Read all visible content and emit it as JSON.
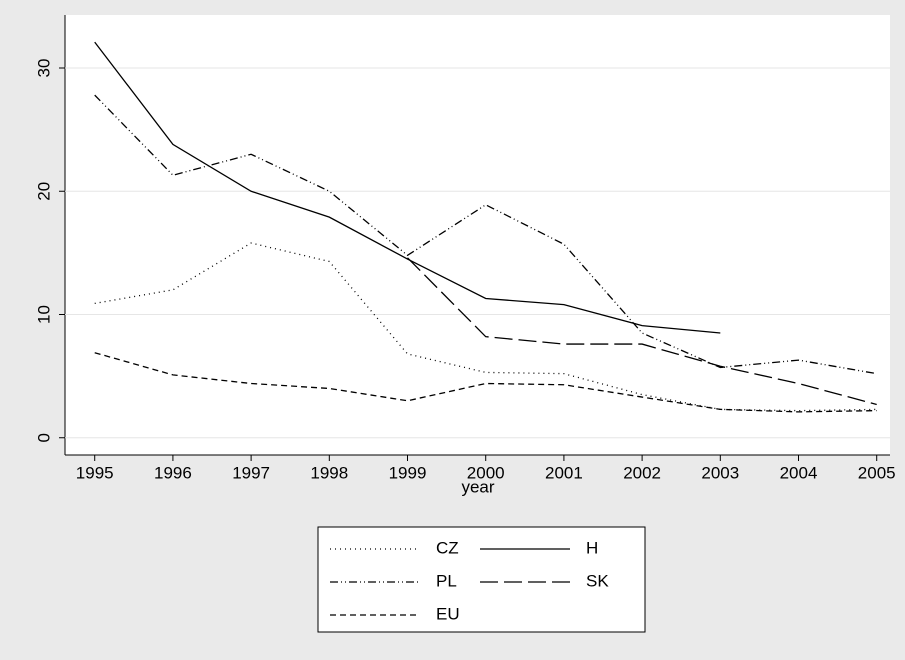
{
  "chart_data": {
    "type": "line",
    "x": [
      1995,
      1996,
      1997,
      1998,
      1999,
      2000,
      2001,
      2002,
      2003,
      2004,
      2005
    ],
    "x_label": "year",
    "series": [
      {
        "name": "CZ",
        "color": "#000000",
        "dash": "1,4",
        "values": [
          10.9,
          12.0,
          15.8,
          14.3,
          6.8,
          5.3,
          5.2,
          3.5,
          2.3,
          2.2,
          2.3
        ]
      },
      {
        "name": "H",
        "color": "#000000",
        "dash": "none",
        "values": [
          32.1,
          23.8,
          20.0,
          17.9,
          14.5,
          11.3,
          10.8,
          9.1,
          8.5,
          null,
          null
        ]
      },
      {
        "name": "PL",
        "color": "#000000",
        "dash": "8,3,1,3,1,3",
        "values": [
          27.8,
          21.3,
          23.0,
          20.0,
          14.8,
          18.9,
          15.7,
          8.5,
          5.7,
          6.3,
          5.2
        ]
      },
      {
        "name": "SK",
        "color": "#000000",
        "dash": "18,6",
        "values": [
          null,
          null,
          null,
          null,
          14.6,
          8.2,
          7.6,
          7.6,
          5.8,
          4.4,
          2.7
        ]
      },
      {
        "name": "EU",
        "color": "#000000",
        "dash": "6,4",
        "values": [
          6.9,
          5.1,
          4.4,
          4.0,
          3.0,
          4.4,
          4.3,
          3.3,
          2.3,
          2.1,
          2.2
        ]
      }
    ],
    "xlim": [
      1994.62,
      2005.17
    ],
    "xticks": [
      1995,
      1996,
      1997,
      1998,
      1999,
      2000,
      2001,
      2002,
      2003,
      2004,
      2005
    ],
    "ylim": [
      -1.4,
      34.3
    ],
    "yticks": [
      0,
      10,
      20,
      30
    ],
    "grid": true
  }
}
